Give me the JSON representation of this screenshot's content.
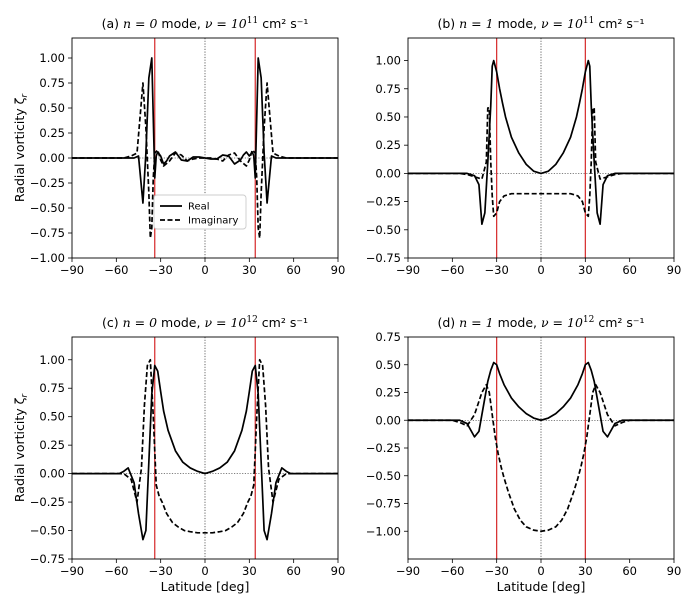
{
  "figure": {
    "xlabel": "Latitude [deg]",
    "ylabel": "Radial vorticity ζ",
    "ylabel_sub": "r",
    "legend": {
      "real_label": "Real",
      "imag_label": "Imaginary",
      "placement": "lower-center"
    },
    "colors": {
      "real": "#000000",
      "imag": "#000000",
      "vline": "#d62728",
      "zero": "#000000"
    }
  },
  "chart_data": [
    {
      "panel": "a",
      "type": "line",
      "title_prefix": "(a) ",
      "title_mode": "n = 0",
      "title_mid": " mode, ",
      "title_nu": "ν = 10",
      "title_exp": "11",
      "title_units": " cm² s⁻¹",
      "xlim": [
        -90,
        90
      ],
      "xticks": [
        -90,
        -60,
        -30,
        0,
        30,
        60,
        90
      ],
      "xticklabels": [
        "−90",
        "−60",
        "−30",
        "0",
        "30",
        "60",
        "90"
      ],
      "ylim": [
        -1.0,
        1.2
      ],
      "yticks": [
        -1.0,
        -0.75,
        -0.5,
        -0.25,
        0.0,
        0.25,
        0.5,
        0.75,
        1.0
      ],
      "yticklabels": [
        "−1.00",
        "−0.75",
        "−0.50",
        "−0.25",
        "0.00",
        "0.25",
        "0.50",
        "0.75",
        "1.00"
      ],
      "vlines": [
        -34,
        34
      ],
      "show_legend": true,
      "show_xlabel": false,
      "show_ylabel": true,
      "series": [
        {
          "name": "Real",
          "style": "solid",
          "x": [
            -90,
            -60,
            -48,
            -45,
            -42,
            -40,
            -38,
            -36,
            -35,
            -34,
            -33,
            -32,
            -30,
            -28,
            -26,
            -24,
            -20,
            -16,
            -12,
            -8,
            -4,
            0,
            4,
            8,
            12,
            16,
            20,
            24,
            26,
            28,
            30,
            32,
            33,
            34,
            35,
            36,
            38,
            40,
            42,
            45,
            48,
            60,
            90
          ],
          "y": [
            0,
            0,
            0,
            0.02,
            -0.45,
            0.05,
            0.8,
            1.0,
            0.4,
            -0.2,
            0.02,
            0.06,
            0.02,
            -0.06,
            -0.03,
            0.02,
            0.06,
            -0.02,
            -0.03,
            0.01,
            0.01,
            0,
            -0.01,
            -0.01,
            0.03,
            0.02,
            -0.06,
            -0.02,
            0.03,
            0.06,
            0.02,
            0.06,
            0.02,
            -0.2,
            0.4,
            1.0,
            0.8,
            0.05,
            -0.45,
            0.02,
            0,
            0,
            0
          ]
        },
        {
          "name": "Imaginary",
          "style": "dashed",
          "x": [
            -90,
            -55,
            -50,
            -46,
            -42,
            -40,
            -38,
            -37,
            -36,
            -35,
            -34,
            -32,
            -30,
            -28,
            -24,
            -20,
            -16,
            -12,
            -8,
            -4,
            0,
            4,
            8,
            12,
            16,
            20,
            24,
            28,
            30,
            32,
            34,
            35,
            36,
            37,
            38,
            40,
            42,
            46,
            50,
            55,
            90
          ],
          "y": [
            0,
            0,
            0.02,
            0.05,
            0.75,
            0.3,
            -0.35,
            -0.8,
            -0.7,
            -0.2,
            0.05,
            0.08,
            -0.02,
            -0.08,
            -0.03,
            0.05,
            0.03,
            -0.03,
            -0.01,
            0,
            0,
            0,
            -0.01,
            -0.03,
            0.03,
            0.05,
            -0.03,
            -0.08,
            -0.02,
            0.08,
            0.05,
            -0.2,
            -0.7,
            -0.8,
            -0.35,
            0.3,
            0.75,
            0.05,
            0.02,
            0,
            0
          ]
        }
      ]
    },
    {
      "panel": "b",
      "type": "line",
      "title_prefix": "(b) ",
      "title_mode": "n = 1",
      "title_mid": " mode, ",
      "title_nu": "ν = 10",
      "title_exp": "11",
      "title_units": " cm² s⁻¹",
      "xlim": [
        -90,
        90
      ],
      "xticks": [
        -90,
        -60,
        -30,
        0,
        30,
        60,
        90
      ],
      "xticklabels": [
        "−90",
        "−60",
        "−30",
        "0",
        "30",
        "60",
        "90"
      ],
      "ylim": [
        -0.75,
        1.2
      ],
      "yticks": [
        -0.75,
        -0.5,
        -0.25,
        0.0,
        0.25,
        0.5,
        0.75,
        1.0
      ],
      "yticklabels": [
        "−0.75",
        "−0.50",
        "−0.25",
        "0.00",
        "0.25",
        "0.50",
        "0.75",
        "1.00"
      ],
      "vlines": [
        -30,
        30
      ],
      "show_legend": false,
      "show_xlabel": false,
      "show_ylabel": false,
      "series": [
        {
          "name": "Real",
          "style": "solid",
          "x": [
            -90,
            -50,
            -45,
            -42,
            -40,
            -38,
            -36,
            -34,
            -33,
            -32,
            -30,
            -28,
            -26,
            -24,
            -20,
            -15,
            -10,
            -5,
            0,
            5,
            10,
            15,
            20,
            24,
            26,
            28,
            30,
            32,
            33,
            34,
            36,
            38,
            40,
            42,
            45,
            50,
            90
          ],
          "y": [
            0,
            0,
            -0.02,
            -0.1,
            -0.45,
            -0.35,
            0.1,
            0.6,
            0.95,
            1.0,
            0.9,
            0.75,
            0.62,
            0.5,
            0.32,
            0.18,
            0.08,
            0.02,
            0,
            0.02,
            0.08,
            0.18,
            0.32,
            0.5,
            0.62,
            0.75,
            0.9,
            1.0,
            0.95,
            0.6,
            0.1,
            -0.35,
            -0.45,
            -0.1,
            -0.02,
            0,
            0
          ]
        },
        {
          "name": "Imaginary",
          "style": "dashed",
          "x": [
            -90,
            -55,
            -50,
            -45,
            -40,
            -37,
            -36,
            -35,
            -34,
            -33,
            -32,
            -30,
            -28,
            -25,
            -20,
            -10,
            0,
            10,
            20,
            25,
            28,
            30,
            32,
            33,
            34,
            35,
            36,
            37,
            40,
            45,
            50,
            55,
            90
          ],
          "y": [
            0,
            0,
            -0.01,
            -0.03,
            -0.05,
            0.1,
            0.58,
            0.58,
            0.1,
            -0.2,
            -0.38,
            -0.35,
            -0.25,
            -0.2,
            -0.18,
            -0.18,
            -0.18,
            -0.18,
            -0.18,
            -0.2,
            -0.25,
            -0.35,
            -0.38,
            -0.2,
            0.1,
            0.58,
            0.58,
            0.1,
            -0.05,
            -0.03,
            -0.01,
            0,
            0
          ]
        }
      ]
    },
    {
      "panel": "c",
      "type": "line",
      "title_prefix": "(c) ",
      "title_mode": "n = 0",
      "title_mid": " mode, ",
      "title_nu": "ν = 10",
      "title_exp": "12",
      "title_units": " cm² s⁻¹",
      "xlim": [
        -90,
        90
      ],
      "xticks": [
        -90,
        -60,
        -30,
        0,
        30,
        60,
        90
      ],
      "xticklabels": [
        "−90",
        "−60",
        "−30",
        "0",
        "30",
        "60",
        "90"
      ],
      "ylim": [
        -0.75,
        1.2
      ],
      "yticks": [
        -0.75,
        -0.5,
        -0.25,
        0.0,
        0.25,
        0.5,
        0.75,
        1.0
      ],
      "yticklabels": [
        "−0.75",
        "−0.50",
        "−0.25",
        "0.00",
        "0.25",
        "0.50",
        "0.75",
        "1.00"
      ],
      "vlines": [
        -34,
        34
      ],
      "show_legend": false,
      "show_xlabel": true,
      "show_ylabel": true,
      "series": [
        {
          "name": "Real",
          "style": "solid",
          "x": [
            -90,
            -58,
            -55,
            -52,
            -48,
            -45,
            -42,
            -40,
            -38,
            -36,
            -34,
            -32,
            -30,
            -28,
            -25,
            -20,
            -15,
            -10,
            -5,
            0,
            5,
            10,
            15,
            20,
            25,
            28,
            30,
            32,
            34,
            36,
            38,
            40,
            42,
            45,
            48,
            52,
            55,
            58,
            90
          ],
          "y": [
            0,
            0,
            0.02,
            0.05,
            -0.08,
            -0.35,
            -0.58,
            -0.5,
            0.1,
            0.7,
            0.95,
            0.9,
            0.72,
            0.55,
            0.38,
            0.2,
            0.1,
            0.05,
            0.02,
            0,
            0.02,
            0.05,
            0.1,
            0.2,
            0.38,
            0.55,
            0.72,
            0.9,
            0.95,
            0.7,
            0.1,
            -0.5,
            -0.58,
            -0.35,
            -0.08,
            0.05,
            0.02,
            0,
            0
          ]
        },
        {
          "name": "Imaginary",
          "style": "dashed",
          "x": [
            -90,
            -55,
            -50,
            -46,
            -43,
            -41,
            -39,
            -37,
            -35,
            -33,
            -31,
            -29,
            -26,
            -22,
            -18,
            -14,
            -10,
            -5,
            0,
            5,
            10,
            14,
            18,
            22,
            26,
            29,
            31,
            33,
            35,
            37,
            39,
            41,
            43,
            46,
            50,
            55,
            90
          ],
          "y": [
            0,
            0,
            -0.05,
            -0.25,
            0.05,
            0.6,
            0.95,
            1.0,
            0.5,
            -0.1,
            -0.2,
            -0.25,
            -0.35,
            -0.43,
            -0.47,
            -0.5,
            -0.51,
            -0.52,
            -0.52,
            -0.52,
            -0.51,
            -0.5,
            -0.47,
            -0.43,
            -0.35,
            -0.25,
            -0.2,
            -0.1,
            0.5,
            1.0,
            0.95,
            0.6,
            0.05,
            -0.25,
            -0.05,
            0,
            0
          ]
        }
      ]
    },
    {
      "panel": "d",
      "type": "line",
      "title_prefix": "(d) ",
      "title_mode": "n = 1",
      "title_mid": " mode, ",
      "title_nu": "ν = 10",
      "title_exp": "12",
      "title_units": " cm² s⁻¹",
      "xlim": [
        -90,
        90
      ],
      "xticks": [
        -90,
        -60,
        -30,
        0,
        30,
        60,
        90
      ],
      "xticklabels": [
        "−90",
        "−60",
        "−30",
        "0",
        "30",
        "60",
        "90"
      ],
      "ylim": [
        -1.25,
        0.75
      ],
      "yticks": [
        -1.0,
        -0.75,
        -0.5,
        -0.25,
        0.0,
        0.25,
        0.5,
        0.75
      ],
      "yticklabels": [
        "−1.00",
        "−0.75",
        "−0.50",
        "−0.25",
        "0.00",
        "0.25",
        "0.50",
        "0.75"
      ],
      "vlines": [
        -30,
        30
      ],
      "show_legend": false,
      "show_xlabel": true,
      "show_ylabel": false,
      "series": [
        {
          "name": "Real",
          "style": "solid",
          "x": [
            -90,
            -60,
            -55,
            -50,
            -45,
            -42,
            -40,
            -38,
            -36,
            -34,
            -32,
            -30,
            -28,
            -25,
            -20,
            -15,
            -10,
            -5,
            0,
            5,
            10,
            15,
            20,
            25,
            28,
            30,
            32,
            34,
            36,
            38,
            40,
            42,
            45,
            50,
            55,
            60,
            90
          ],
          "y": [
            0,
            0,
            0,
            -0.03,
            -0.15,
            -0.1,
            0.05,
            0.2,
            0.35,
            0.45,
            0.52,
            0.5,
            0.42,
            0.32,
            0.2,
            0.12,
            0.06,
            0.02,
            0,
            0.02,
            0.06,
            0.12,
            0.2,
            0.32,
            0.42,
            0.5,
            0.52,
            0.45,
            0.35,
            0.2,
            0.05,
            -0.1,
            -0.15,
            -0.03,
            0,
            0,
            0
          ]
        },
        {
          "name": "Imaginary",
          "style": "dashed",
          "x": [
            -90,
            -60,
            -55,
            -50,
            -45,
            -40,
            -37,
            -35,
            -33,
            -31,
            -29,
            -27,
            -25,
            -22,
            -18,
            -14,
            -10,
            -5,
            0,
            5,
            10,
            14,
            18,
            22,
            25,
            27,
            29,
            31,
            33,
            35,
            37,
            40,
            45,
            50,
            55,
            60,
            90
          ],
          "y": [
            0,
            0,
            -0.02,
            -0.05,
            0.05,
            0.25,
            0.32,
            0.25,
            0.05,
            -0.15,
            -0.3,
            -0.42,
            -0.52,
            -0.65,
            -0.8,
            -0.9,
            -0.96,
            -0.99,
            -1.0,
            -0.99,
            -0.96,
            -0.9,
            -0.8,
            -0.65,
            -0.52,
            -0.42,
            -0.3,
            -0.15,
            0.05,
            0.25,
            0.32,
            0.25,
            0.05,
            -0.05,
            -0.02,
            0,
            0
          ]
        }
      ]
    }
  ]
}
